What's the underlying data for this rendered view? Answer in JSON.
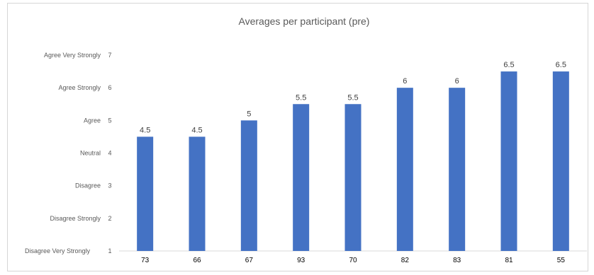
{
  "chart_data": {
    "type": "bar",
    "title": "Averages per participant (pre)",
    "xlabel": "",
    "ylabel": "",
    "categories": [
      "73",
      "66",
      "67",
      "93",
      "70",
      "82",
      "83",
      "81",
      "55"
    ],
    "values": [
      4.5,
      4.5,
      5,
      5.5,
      5.5,
      6,
      6,
      6.5,
      6.5
    ],
    "data_labels": [
      "4.5",
      "4.5",
      "5",
      "5.5",
      "5.5",
      "6",
      "6",
      "6.5",
      "6.5"
    ],
    "ylim": [
      1,
      7
    ],
    "yticks": [
      1,
      2,
      3,
      4,
      5,
      6,
      7
    ],
    "category_labels": [
      "Disagree Very Strongly",
      "Disagree  Strongly",
      "Disagree",
      "Neutral",
      "Agree",
      "Agree Strongly",
      "Agree Very Strongly"
    ],
    "bar_color": "#4472C4",
    "grid": false,
    "legend": "none"
  }
}
